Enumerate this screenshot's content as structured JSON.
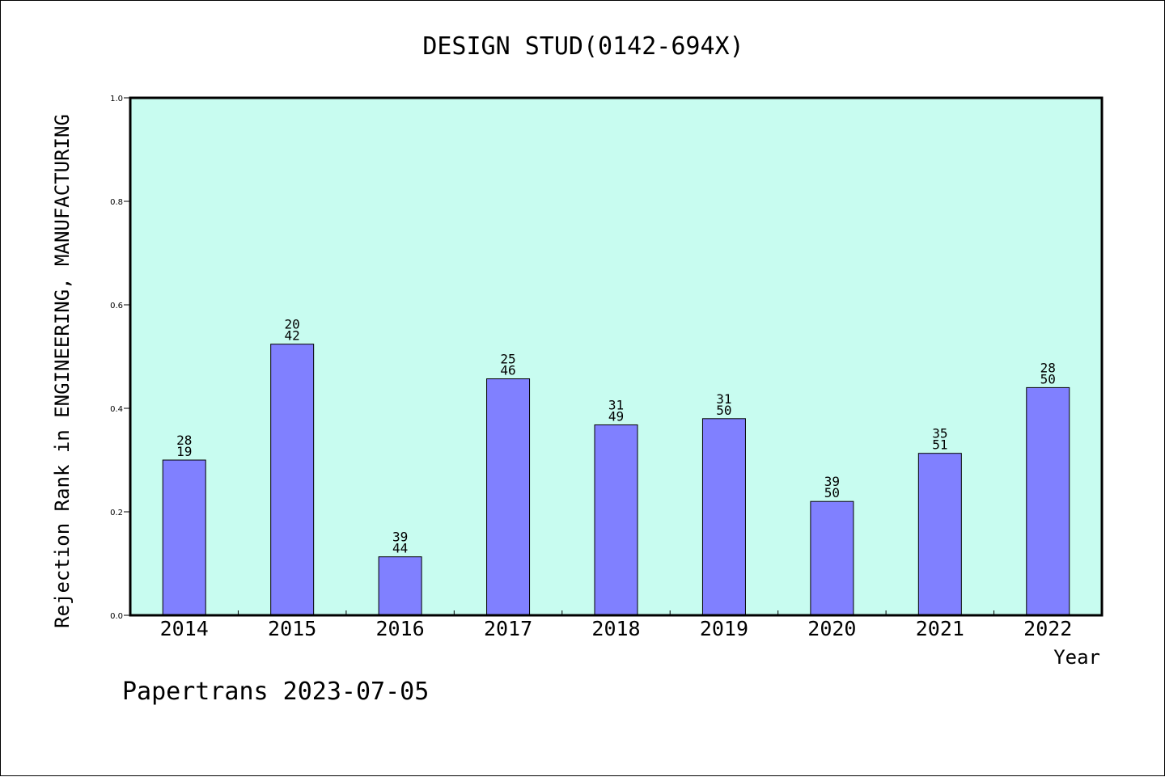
{
  "chart_data": {
    "type": "bar",
    "title": "DESIGN STUD(0142-694X)",
    "xlabel": "Year",
    "ylabel": "Rejection Rank in ENGINEERING, MANUFACTURING",
    "ylim": [
      0,
      1.0
    ],
    "yticks": [
      "0.0",
      "0.2",
      "0.4",
      "0.6",
      "0.8",
      "1.0"
    ],
    "categories": [
      "2014",
      "2015",
      "2016",
      "2017",
      "2018",
      "2019",
      "2020",
      "2021",
      "2022"
    ],
    "values": [
      0.3,
      0.524,
      0.113,
      0.457,
      0.368,
      0.38,
      0.22,
      0.313,
      0.44
    ],
    "bar_labels": [
      [
        "28",
        "19"
      ],
      [
        "20",
        "42"
      ],
      [
        "39",
        "44"
      ],
      [
        "25",
        "46"
      ],
      [
        "31",
        "49"
      ],
      [
        "31",
        "50"
      ],
      [
        "39",
        "50"
      ],
      [
        "35",
        "51"
      ],
      [
        "28",
        "50"
      ]
    ],
    "grid": false,
    "colors": {
      "plot_background": "#c8fcf0",
      "bar_fill": "#8080ff",
      "bar_stroke": "#000000"
    }
  },
  "footer": {
    "text": "Papertrans 2023-07-05"
  }
}
